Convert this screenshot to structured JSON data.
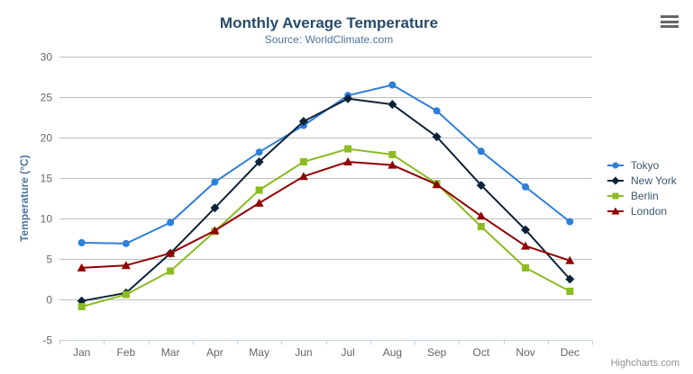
{
  "chart": {
    "credits_label": "Highcharts.com"
  },
  "chart_data": {
    "type": "line",
    "title": "Monthly Average Temperature",
    "subtitle": "Source: WorldClimate.com",
    "xlabel": "",
    "ylabel": "Temperature (°C)",
    "categories": [
      "Jan",
      "Feb",
      "Mar",
      "Apr",
      "May",
      "Jun",
      "Jul",
      "Aug",
      "Sep",
      "Oct",
      "Nov",
      "Dec"
    ],
    "yticks": [
      -5,
      0,
      5,
      10,
      15,
      20,
      25,
      30
    ],
    "ylim": [
      -5,
      30
    ],
    "grid": true,
    "legend_position": "right",
    "series": [
      {
        "name": "Tokyo",
        "color": "#2f7ed8",
        "marker": "circle",
        "values": [
          7.0,
          6.9,
          9.5,
          14.5,
          18.2,
          21.5,
          25.2,
          26.5,
          23.3,
          18.3,
          13.9,
          9.6
        ]
      },
      {
        "name": "New York",
        "color": "#0d233a",
        "marker": "diamond",
        "values": [
          -0.2,
          0.8,
          5.7,
          11.3,
          17.0,
          22.0,
          24.8,
          24.1,
          20.1,
          14.1,
          8.6,
          2.5
        ]
      },
      {
        "name": "Berlin",
        "color": "#8bbc21",
        "marker": "square",
        "values": [
          -0.9,
          0.6,
          3.5,
          8.4,
          13.5,
          17.0,
          18.6,
          17.9,
          14.3,
          9.0,
          3.9,
          1.0
        ]
      },
      {
        "name": "London",
        "color": "#910000",
        "marker": "triangle",
        "values": [
          3.9,
          4.2,
          5.7,
          8.5,
          11.9,
          15.2,
          17.0,
          16.6,
          14.2,
          10.3,
          6.6,
          4.8
        ]
      }
    ],
    "colors": {
      "title": "#274b6d",
      "subtitle": "#4d759e",
      "axis_title": "#4d759e",
      "tick_label": "#666666",
      "grid": "#c0c0c0",
      "axis_line": "#c0d0e0",
      "legend_text": "#3e576f",
      "credits": "#909090",
      "menu_icon": "#666666"
    }
  }
}
